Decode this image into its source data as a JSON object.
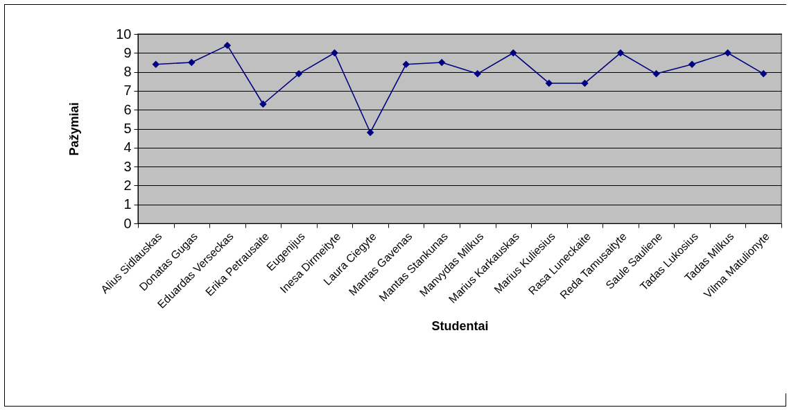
{
  "chart_data": {
    "type": "line",
    "xlabel": "Studentai",
    "ylabel": "Pažymiai",
    "categories": [
      "Alius Sidlauskas",
      "Donatas Gugas",
      "Eduardas Verseckas",
      "Erika Petrausaite",
      "Eugenijus",
      "Inesa Dirmeityte",
      "Laura Ciegyte",
      "Mantas Gavenas",
      "Mantas Stankunas",
      "Manvydas Milkus",
      "Marius Karkauskas",
      "Marius Kuliesius",
      "Rasa Luneckaite",
      "Reda Tamusaityte",
      "Saule Sauliene",
      "Tadas Lukosius",
      "Tadas Milkus",
      "Vilma Matulionyte"
    ],
    "series": [
      {
        "color": "#000080",
        "values": [
          8.4,
          8.5,
          9.4,
          6.3,
          7.9,
          9,
          4.8,
          8.4,
          8.5,
          7.9,
          9,
          7.4,
          7.4,
          9,
          7.9,
          8.4,
          9,
          7.9
        ]
      }
    ],
    "ylim": [
      0,
      10
    ],
    "yticks": [
      0,
      1,
      2,
      3,
      4,
      5,
      6,
      7,
      8,
      9,
      10
    ],
    "grid": "y",
    "legend": false,
    "marker": "diamond",
    "line_style": "solid"
  }
}
